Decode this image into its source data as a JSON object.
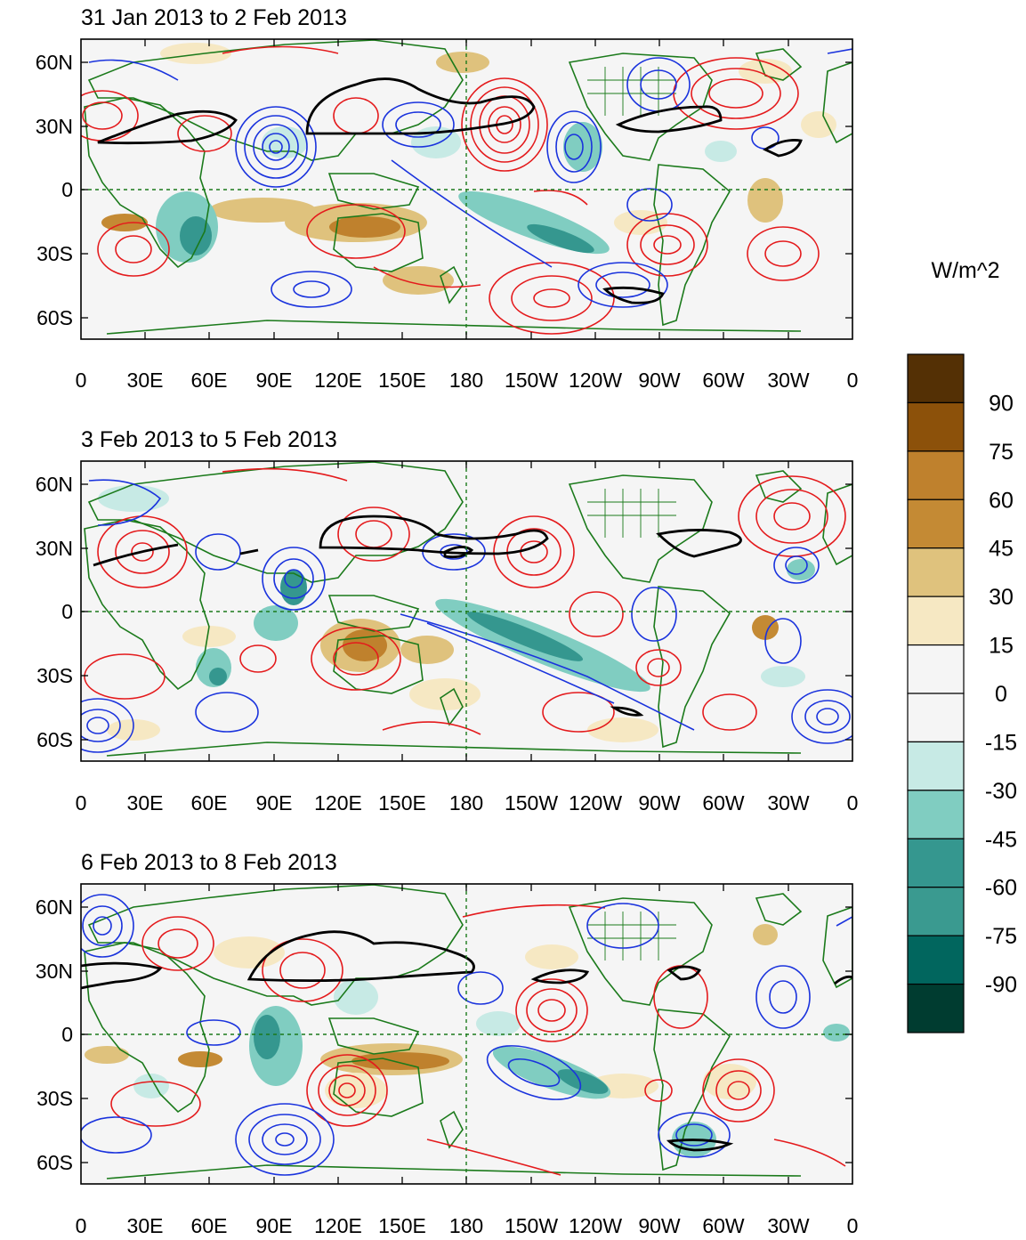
{
  "panels": [
    {
      "title": "31 Jan 2013 to 2 Feb 2013"
    },
    {
      "title": "3 Feb 2013 to 5 Feb 2013"
    },
    {
      "title": "6 Feb 2013 to 8 Feb 2013"
    }
  ],
  "lat_ticks": [
    "60N",
    "30N",
    "0",
    "30S",
    "60S"
  ],
  "lon_ticks": [
    "0",
    "30E",
    "60E",
    "90E",
    "120E",
    "150E",
    "180",
    "150W",
    "120W",
    "90W",
    "60W",
    "30W",
    "0"
  ],
  "colorbar": {
    "units": "W/m^2",
    "labels": [
      "90",
      "75",
      "60",
      "45",
      "30",
      "15",
      "0",
      "-15",
      "-30",
      "-45",
      "-60",
      "-75",
      "-90"
    ],
    "colors": [
      "#543005",
      "#8c510a",
      "#bf812d",
      "#c48a34",
      "#dfc27d",
      "#f6e8c3",
      "#f5f5f5",
      "#f5f5f5",
      "#c7eae5",
      "#80cdc1",
      "#35978f",
      "#3a9a90",
      "#01665e",
      "#003c30"
    ]
  },
  "chart_data": {
    "type": "heatmap",
    "title": "",
    "units": "W/m^2",
    "xlabel": "",
    "ylabel": "",
    "x_range": [
      0,
      360
    ],
    "y_range": [
      -72,
      72
    ],
    "grid": false,
    "contour_colors": {
      "positive": "#e41a1c",
      "negative": "#1a33dd",
      "jet": "#000000",
      "coast": "#1b7a1b",
      "reference": "#1b7a1b"
    },
    "legend_placement": "right"
  }
}
